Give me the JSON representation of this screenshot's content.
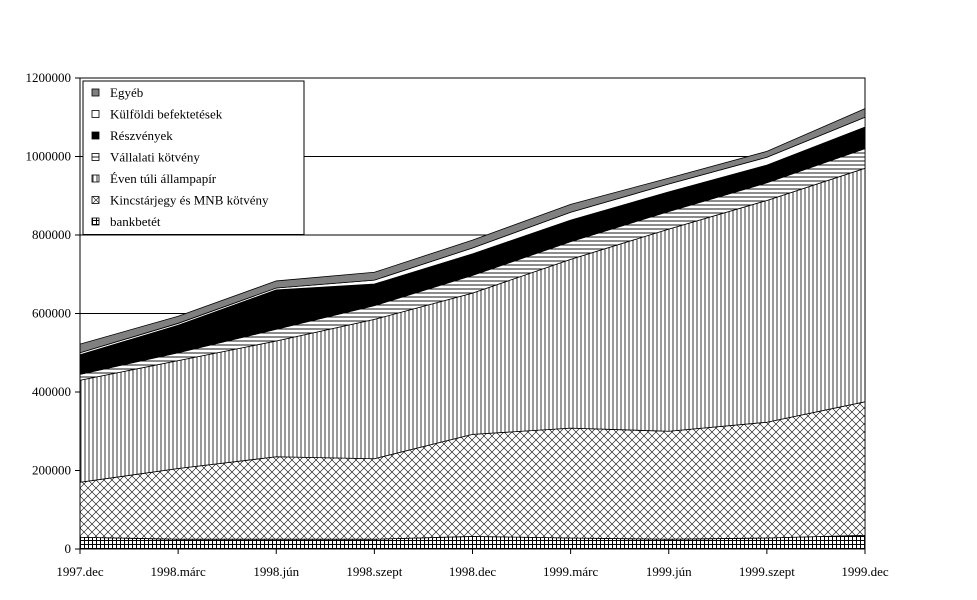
{
  "chart_data": {
    "type": "area",
    "stacked": true,
    "categories": [
      "1997.dec",
      "1998.márc",
      "1998.jún",
      "1998.szept",
      "1998.dec",
      "1999.márc",
      "1999.jún",
      "1999.szept",
      "1999.dec"
    ],
    "ylim": [
      0,
      1200000
    ],
    "yticks": [
      "0",
      "200000",
      "400000",
      "600000",
      "800000",
      "1000000",
      "1200000"
    ],
    "ytick_values": [
      0,
      200000,
      400000,
      600000,
      800000,
      1000000,
      1200000
    ],
    "grid": "horizontal",
    "legend_position": "top-left",
    "series": [
      {
        "name": "bankbetét",
        "pattern": "grid",
        "values": [
          30000,
          25000,
          25000,
          25000,
          32000,
          28000,
          25000,
          28000,
          35000
        ]
      },
      {
        "name": "Kincstárjegy és MNB kötvény",
        "pattern": "diagonal-cross",
        "values": [
          140000,
          180000,
          210000,
          205000,
          260000,
          280000,
          275000,
          295000,
          340000
        ]
      },
      {
        "name": "Éven túli állampapír",
        "pattern": "vertical",
        "values": [
          260000,
          275000,
          295000,
          355000,
          360000,
          430000,
          515000,
          565000,
          595000
        ]
      },
      {
        "name": "Vállalati kötvény",
        "pattern": "horizontal",
        "values": [
          15000,
          20000,
          30000,
          35000,
          45000,
          45000,
          45000,
          45000,
          50000
        ]
      },
      {
        "name": "Részvények",
        "pattern": "black",
        "values": [
          50000,
          70000,
          100000,
          55000,
          55000,
          55000,
          50000,
          45000,
          55000
        ]
      },
      {
        "name": "Külföldi befektetések",
        "pattern": "white",
        "values": [
          5000,
          5000,
          5000,
          10000,
          15000,
          20000,
          20000,
          20000,
          25000
        ]
      },
      {
        "name": "Egyéb",
        "pattern": "gray",
        "values": [
          22000,
          18000,
          18000,
          20000,
          20000,
          20000,
          15000,
          15000,
          22000
        ]
      }
    ],
    "legend_order": [
      "Egyéb",
      "Külföldi befektetések",
      "Részvények",
      "Vállalati kötvény",
      "Éven túli állampapír",
      "Kincstárjegy és MNB kötvény",
      "bankbetét"
    ]
  }
}
